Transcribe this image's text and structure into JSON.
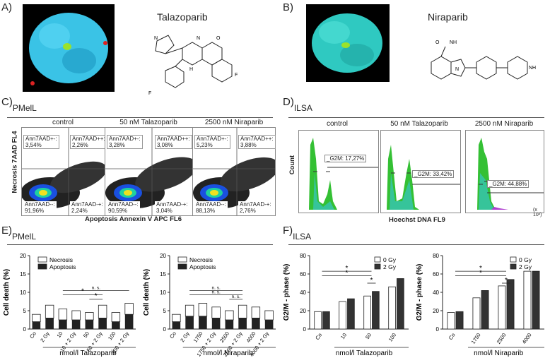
{
  "panels": {
    "A": {
      "label": "A)",
      "drug": "Talazoparib"
    },
    "B": {
      "label": "B)",
      "drug": "Niraparib"
    },
    "C": {
      "label": "C)",
      "cell_line": "PMelL",
      "conditions": [
        "control",
        "50 nM Talazoparib",
        "2500 nM Niraparib"
      ],
      "y_axis": "Necrosis 7AAD FL4",
      "x_axis": "Apoptosis Annexin V APC FL6",
      "quadrants": [
        {
          "ul_label": "Ann7AAD+-:",
          "ul_value": "3,54%",
          "ur_label": "Ann7AAD++:",
          "ur_value": "2,26%",
          "ll_label": "Ann7AAD--:",
          "ll_value": "91,96%",
          "lr_label": "Ann7AAD-+:",
          "lr_value": "2,24%"
        },
        {
          "ul_label": "Ann7AAD+-:",
          "ul_value": "3,28%",
          "ur_label": "Ann7AAD++:",
          "ur_value": "3,08%",
          "ll_label": "Ann7AAD--:",
          "ll_value": "90,59%",
          "lr_label": "Ann7AAD-+:",
          "lr_value": "3,04%"
        },
        {
          "ul_label": "Ann7AAD+-:",
          "ul_value": "5,23%",
          "ur_label": "Ann7AAD++:",
          "ur_value": "3,88%",
          "ll_label": "Ann7AAD--:",
          "ll_value": "88,13%",
          "lr_label": "Ann7AAD-+:",
          "lr_value": "2,76%"
        }
      ]
    },
    "D": {
      "label": "D)",
      "cell_line": "ILSA",
      "conditions": [
        "control",
        "50 nM Talazoparib",
        "2500 nM Niraparib"
      ],
      "y_axis": "Count",
      "x_axis": "Hoechst DNA FL9",
      "gates": [
        "_G2M: 17,27%",
        "_G2M: 33,42%",
        "_G2M: 44,88%"
      ],
      "x_unit": "(x 10³)"
    },
    "E": {
      "label": "E)",
      "cell_line": "PMelL"
    },
    "F": {
      "label": "F)",
      "cell_line": "ILSA"
    }
  },
  "chart_data": [
    {
      "type": "bar",
      "panel": "E-left",
      "stacked": true,
      "ylabel": "Cell death (%)",
      "xlabel": "nmol/l Talazoparib",
      "categories": [
        "Co",
        "2 Gy",
        "10",
        "10 + 2 Gy",
        "50",
        "50 + 2 Gy",
        "100",
        "100 + 2 Gy"
      ],
      "series": [
        {
          "name": "Necrosis",
          "values": [
            2.0,
            3.5,
            3.0,
            2.5,
            2.0,
            3.5,
            2.5,
            3.0
          ]
        },
        {
          "name": "Apoptosis",
          "values": [
            2.0,
            3.0,
            2.5,
            2.5,
            2.5,
            3.0,
            2.0,
            4.0
          ]
        }
      ],
      "ylim": [
        0,
        20
      ],
      "yticks": [
        0,
        5,
        10,
        15,
        20
      ],
      "annotations": [
        "n. s.",
        "*",
        "*"
      ]
    },
    {
      "type": "bar",
      "panel": "E-right",
      "stacked": true,
      "ylabel": "Cell death (%)",
      "xlabel": "nmol/l Niraparib",
      "categories": [
        "Co",
        "2 Gy",
        "1750",
        "1750 + 2 Gy",
        "2500",
        "2500 + 2 Gy",
        "4000",
        "4000 + 2 Gy"
      ],
      "series": [
        {
          "name": "Necrosis",
          "values": [
            2.0,
            3.0,
            3.5,
            3.0,
            2.5,
            3.5,
            3.0,
            2.5
          ]
        },
        {
          "name": "Apoptosis",
          "values": [
            2.0,
            3.5,
            3.5,
            3.0,
            2.5,
            3.0,
            3.0,
            2.5
          ]
        }
      ],
      "ylim": [
        0,
        20
      ],
      "yticks": [
        0,
        5,
        10,
        15,
        20
      ],
      "annotations": [
        "n. s.",
        "n. s.",
        "n. s."
      ]
    },
    {
      "type": "bar",
      "panel": "F-left",
      "ylabel": "G2/M - phase (%)",
      "xlabel": "nmol/l Talazoparib",
      "categories": [
        "Co",
        "10",
        "50",
        "100"
      ],
      "series": [
        {
          "name": "0 Gy",
          "values": [
            19,
            30,
            36,
            46
          ]
        },
        {
          "name": "2 Gy",
          "values": [
            19,
            33,
            41,
            55
          ]
        }
      ],
      "ylim": [
        0,
        80
      ],
      "yticks": [
        0,
        20,
        40,
        60,
        80
      ],
      "annotations": [
        "*",
        "*",
        "*"
      ]
    },
    {
      "type": "bar",
      "panel": "F-right",
      "ylabel": "G2/M - phase (%)",
      "xlabel": "nmol/l Niraparib",
      "categories": [
        "Co",
        "1750",
        "2500",
        "4000"
      ],
      "series": [
        {
          "name": "0 Gy",
          "values": [
            18,
            34,
            47,
            63
          ]
        },
        {
          "name": "2 Gy",
          "values": [
            19,
            42,
            54,
            63
          ]
        }
      ],
      "ylim": [
        0,
        80
      ],
      "yticks": [
        0,
        20,
        40,
        60,
        80
      ],
      "annotations": [
        "*",
        "*",
        "*"
      ]
    }
  ]
}
